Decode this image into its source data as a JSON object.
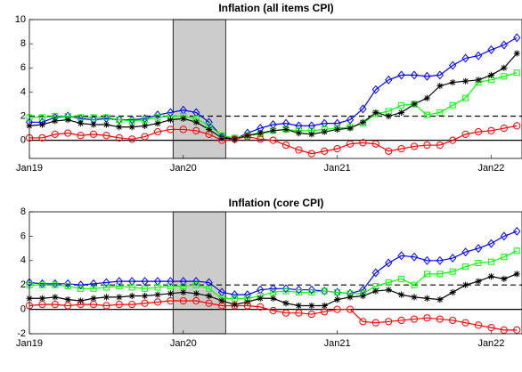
{
  "chart_data": [
    {
      "type": "line",
      "title": "Inflation (all items CPI)",
      "x": [
        0,
        1,
        2,
        3,
        4,
        5,
        6,
        7,
        8,
        9,
        10,
        11,
        12,
        13,
        14,
        15,
        16,
        17,
        18,
        19,
        20,
        21,
        22,
        23,
        24,
        25,
        26,
        27,
        28,
        29,
        30,
        31,
        32,
        33,
        34,
        35,
        36,
        37,
        38
      ],
      "xlim": [
        0,
        38.4
      ],
      "xticks": [
        {
          "value": 0,
          "label": "Jan19"
        },
        {
          "value": 12,
          "label": "Jan20"
        },
        {
          "value": 24,
          "label": "Jan21"
        },
        {
          "value": 36,
          "label": "Jan22"
        }
      ],
      "ylim": [
        -1.5,
        10
      ],
      "yticks": [
        0,
        2,
        4,
        6,
        8,
        10
      ],
      "shade": [
        11.2,
        15.3
      ],
      "hlines": [
        {
          "value": 2,
          "style": "dashed"
        },
        {
          "value": 0,
          "style": "solid"
        }
      ],
      "series": [
        {
          "color": "#0000ff",
          "marker": "diamond",
          "values": [
            1.5,
            1.5,
            1.9,
            2.0,
            1.8,
            1.7,
            1.8,
            1.7,
            1.7,
            1.8,
            2.1,
            2.3,
            2.5,
            2.3,
            1.5,
            0.3,
            0.1,
            0.6,
            1.0,
            1.3,
            1.4,
            1.2,
            1.2,
            1.4,
            1.4,
            1.7,
            2.6,
            4.2,
            5.0,
            5.4,
            5.4,
            5.3,
            5.4,
            6.2,
            6.8,
            7.0,
            7.5,
            7.9,
            8.5
          ]
        },
        {
          "color": "#00ff00",
          "marker": "square",
          "values": [
            1.9,
            1.9,
            2.0,
            2.0,
            1.9,
            1.9,
            1.9,
            1.7,
            1.6,
            1.7,
            1.9,
            2.0,
            2.0,
            1.8,
            1.2,
            0.4,
            0.2,
            0.4,
            0.5,
            0.8,
            0.9,
            0.8,
            0.8,
            0.9,
            1.0,
            1.1,
            1.4,
            2.2,
            2.4,
            2.9,
            3.0,
            2.1,
            2.3,
            2.9,
            3.5,
            4.8,
            5.0,
            5.3,
            5.6
          ]
        },
        {
          "color": "#000000",
          "marker": "star",
          "values": [
            1.2,
            1.3,
            1.6,
            1.7,
            1.4,
            1.3,
            1.3,
            1.1,
            1.1,
            1.2,
            1.4,
            1.7,
            1.8,
            1.5,
            0.9,
            0.2,
            0.1,
            0.4,
            0.6,
            0.8,
            0.9,
            0.6,
            0.5,
            0.7,
            0.9,
            1.0,
            1.5,
            2.3,
            2.0,
            2.3,
            3.0,
            3.5,
            4.5,
            4.8,
            4.9,
            5.0,
            5.4,
            6.0,
            7.2
          ]
        },
        {
          "color": "#ff0000",
          "marker": "circle",
          "values": [
            0.2,
            0.2,
            0.5,
            0.6,
            0.4,
            0.5,
            0.4,
            0.2,
            0.1,
            0.3,
            0.7,
            0.9,
            0.9,
            0.8,
            0.5,
            0.0,
            0.1,
            0.3,
            0.1,
            0.0,
            -0.4,
            -0.8,
            -1.1,
            -0.9,
            -0.7,
            -0.3,
            -0.2,
            -0.3,
            -0.9,
            -0.7,
            -0.5,
            -0.4,
            -0.4,
            0.0,
            0.5,
            0.7,
            0.8,
            1.0,
            1.2
          ]
        }
      ]
    },
    {
      "type": "line",
      "title": "Inflation (core CPI)",
      "x": [
        0,
        1,
        2,
        3,
        4,
        5,
        6,
        7,
        8,
        9,
        10,
        11,
        12,
        13,
        14,
        15,
        16,
        17,
        18,
        19,
        20,
        21,
        22,
        23,
        24,
        25,
        26,
        27,
        28,
        29,
        30,
        31,
        32,
        33,
        34,
        35,
        36,
        37,
        38
      ],
      "xlim": [
        0,
        38.4
      ],
      "xticks": [
        {
          "value": 0,
          "label": "Jan19"
        },
        {
          "value": 12,
          "label": "Jan20"
        },
        {
          "value": 24,
          "label": "Jan21"
        },
        {
          "value": 36,
          "label": "Jan22"
        }
      ],
      "ylim": [
        -2,
        8
      ],
      "yticks": [
        -2,
        0,
        2,
        4,
        6,
        8
      ],
      "shade": [
        11.2,
        15.3
      ],
      "hlines": [
        {
          "value": 2,
          "style": "dashed"
        },
        {
          "value": 0,
          "style": "solid"
        }
      ],
      "series": [
        {
          "color": "#0000ff",
          "marker": "diamond",
          "values": [
            2.2,
            2.1,
            2.1,
            2.1,
            2.0,
            2.1,
            2.2,
            2.3,
            2.3,
            2.3,
            2.3,
            2.3,
            2.3,
            2.3,
            2.2,
            1.4,
            1.2,
            1.2,
            1.6,
            1.7,
            1.7,
            1.6,
            1.6,
            1.5,
            1.4,
            1.3,
            1.6,
            3.0,
            3.8,
            4.4,
            4.3,
            4.0,
            4.0,
            4.2,
            4.7,
            5.0,
            5.4,
            6.0,
            6.4
          ]
        },
        {
          "color": "#00ff00",
          "marker": "square",
          "values": [
            2.0,
            2.0,
            2.0,
            1.9,
            1.7,
            1.7,
            1.8,
            1.9,
            1.8,
            1.7,
            1.8,
            1.9,
            1.9,
            2.0,
            1.7,
            0.9,
            0.9,
            0.9,
            1.1,
            1.4,
            1.5,
            1.4,
            1.4,
            1.5,
            1.4,
            1.3,
            1.3,
            1.9,
            2.2,
            2.5,
            2.0,
            2.9,
            2.9,
            3.1,
            3.5,
            3.8,
            3.9,
            4.3,
            4.8
          ]
        },
        {
          "color": "#000000",
          "marker": "star",
          "values": [
            0.9,
            0.9,
            1.0,
            0.8,
            0.7,
            0.9,
            1.0,
            1.0,
            1.1,
            1.1,
            1.2,
            1.3,
            1.4,
            1.3,
            1.1,
            0.7,
            0.4,
            0.6,
            0.9,
            0.9,
            0.5,
            0.3,
            0.3,
            0.3,
            0.8,
            1.0,
            1.1,
            1.5,
            1.6,
            1.2,
            1.0,
            0.9,
            0.8,
            1.4,
            2.0,
            2.3,
            2.7,
            2.5,
            2.9
          ]
        },
        {
          "color": "#ff0000",
          "marker": "circle",
          "values": [
            0.3,
            0.4,
            0.4,
            0.3,
            0.4,
            0.4,
            0.3,
            0.4,
            0.4,
            0.5,
            0.6,
            0.7,
            0.7,
            0.7,
            0.5,
            0.3,
            0.3,
            0.3,
            0.2,
            -0.1,
            -0.3,
            -0.3,
            -0.4,
            -0.2,
            0.0,
            0.0,
            -1.0,
            -1.1,
            -1.0,
            -0.9,
            -0.8,
            -0.7,
            -0.8,
            -0.9,
            -1.1,
            -1.3,
            -1.5,
            -1.7,
            -1.7
          ]
        }
      ]
    }
  ]
}
